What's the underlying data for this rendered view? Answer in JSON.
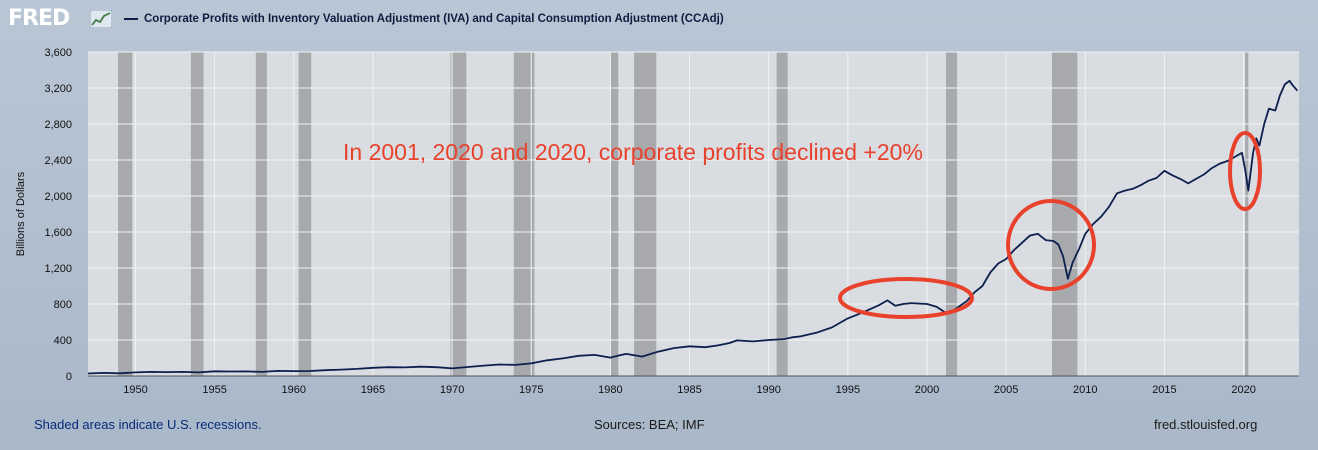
{
  "header": {
    "logo_text": "FRED",
    "logo_icon": "chart-line-icon",
    "series_title": "Corporate Profits with Inventory Valuation Adjustment (IVA) and Capital Consumption Adjustment (CCAdj)"
  },
  "footer": {
    "recession_note": "Shaded areas indicate U.S. recessions.",
    "sources": "Sources: BEA; IMF",
    "site": "fred.stlouisfed.org"
  },
  "annotation": {
    "text": "In 2001, 2020 and 2020, corporate profits declined +20%",
    "color": "#e8412c"
  },
  "chart_data": {
    "type": "line",
    "title": "",
    "xlabel": "",
    "ylabel": "Billions of Dollars",
    "xlim": [
      1947.0,
      2023.5
    ],
    "ylim": [
      0,
      3600
    ],
    "x_ticks": [
      1950,
      1955,
      1960,
      1965,
      1970,
      1975,
      1980,
      1985,
      1990,
      1995,
      2000,
      2005,
      2010,
      2015,
      2020
    ],
    "y_ticks": [
      0,
      400,
      800,
      1200,
      1600,
      2000,
      2400,
      2800,
      3200,
      3600
    ],
    "y_tick_labels": [
      "0",
      "400",
      "800",
      "1,200",
      "1,600",
      "2,000",
      "2,400",
      "2,800",
      "3,200",
      "3,600"
    ],
    "grid": true,
    "legend": "top-left",
    "colors": {
      "line": "#0c1f4d",
      "plot_bg": "#d9dde2",
      "recession": "#a7a9ad",
      "grid": "#f2f2f2"
    },
    "recessions": [
      [
        1948.9,
        1949.8
      ],
      [
        1953.5,
        1954.3
      ],
      [
        1957.6,
        1958.3
      ],
      [
        1960.3,
        1961.1
      ],
      [
        1969.9,
        1970.9
      ],
      [
        1973.9,
        1975.2
      ],
      [
        1980.0,
        1980.5
      ],
      [
        1981.5,
        1982.9
      ],
      [
        1990.5,
        1991.2
      ],
      [
        2001.2,
        2001.9
      ],
      [
        2007.9,
        2009.5
      ],
      [
        2020.1,
        2020.3
      ]
    ],
    "series": [
      {
        "values": [
          [
            1947.0,
            28
          ],
          [
            1948.0,
            35
          ],
          [
            1949.0,
            30
          ],
          [
            1950.0,
            40
          ],
          [
            1951.0,
            45
          ],
          [
            1952.0,
            43
          ],
          [
            1953.0,
            45
          ],
          [
            1954.0,
            40
          ],
          [
            1955.0,
            52
          ],
          [
            1956.0,
            50
          ],
          [
            1957.0,
            51
          ],
          [
            1958.0,
            46
          ],
          [
            1959.0,
            57
          ],
          [
            1960.0,
            55
          ],
          [
            1961.0,
            56
          ],
          [
            1962.0,
            64
          ],
          [
            1963.0,
            71
          ],
          [
            1964.0,
            79
          ],
          [
            1965.0,
            91
          ],
          [
            1966.0,
            98
          ],
          [
            1967.0,
            95
          ],
          [
            1968.0,
            103
          ],
          [
            1969.0,
            98
          ],
          [
            1970.0,
            85
          ],
          [
            1971.0,
            100
          ],
          [
            1972.0,
            115
          ],
          [
            1973.0,
            128
          ],
          [
            1974.0,
            123
          ],
          [
            1975.0,
            140
          ],
          [
            1976.0,
            175
          ],
          [
            1977.0,
            195
          ],
          [
            1978.0,
            225
          ],
          [
            1979.0,
            235
          ],
          [
            1980.0,
            205
          ],
          [
            1980.6,
            230
          ],
          [
            1981.0,
            245
          ],
          [
            1982.0,
            215
          ],
          [
            1983.0,
            270
          ],
          [
            1984.0,
            310
          ],
          [
            1985.0,
            330
          ],
          [
            1986.0,
            320
          ],
          [
            1986.8,
            340
          ],
          [
            1987.5,
            365
          ],
          [
            1988.0,
            395
          ],
          [
            1989.0,
            385
          ],
          [
            1990.0,
            400
          ],
          [
            1991.0,
            410
          ],
          [
            1991.5,
            430
          ],
          [
            1992.0,
            440
          ],
          [
            1993.0,
            480
          ],
          [
            1994.0,
            540
          ],
          [
            1995.0,
            640
          ],
          [
            1996.0,
            710
          ],
          [
            1997.0,
            790
          ],
          [
            1997.5,
            840
          ],
          [
            1998.0,
            780
          ],
          [
            1998.5,
            800
          ],
          [
            1999.0,
            810
          ],
          [
            2000.0,
            800
          ],
          [
            2000.6,
            770
          ],
          [
            2001.2,
            700
          ],
          [
            2001.6,
            720
          ],
          [
            2002.0,
            770
          ],
          [
            2002.5,
            830
          ],
          [
            2003.0,
            930
          ],
          [
            2003.5,
            1000
          ],
          [
            2004.0,
            1150
          ],
          [
            2004.5,
            1250
          ],
          [
            2005.0,
            1300
          ],
          [
            2005.5,
            1400
          ],
          [
            2006.0,
            1480
          ],
          [
            2006.5,
            1560
          ],
          [
            2007.0,
            1580
          ],
          [
            2007.5,
            1510
          ],
          [
            2008.0,
            1500
          ],
          [
            2008.3,
            1460
          ],
          [
            2008.6,
            1330
          ],
          [
            2008.9,
            1080
          ],
          [
            2009.2,
            1260
          ],
          [
            2009.6,
            1410
          ],
          [
            2010.0,
            1580
          ],
          [
            2010.5,
            1690
          ],
          [
            2011.0,
            1770
          ],
          [
            2011.5,
            1880
          ],
          [
            2012.0,
            2030
          ],
          [
            2012.5,
            2060
          ],
          [
            2013.0,
            2080
          ],
          [
            2013.5,
            2120
          ],
          [
            2014.0,
            2170
          ],
          [
            2014.5,
            2200
          ],
          [
            2015.0,
            2280
          ],
          [
            2015.5,
            2230
          ],
          [
            2016.0,
            2190
          ],
          [
            2016.5,
            2140
          ],
          [
            2017.0,
            2190
          ],
          [
            2017.5,
            2240
          ],
          [
            2018.0,
            2310
          ],
          [
            2018.5,
            2360
          ],
          [
            2019.0,
            2390
          ],
          [
            2019.5,
            2440
          ],
          [
            2019.9,
            2480
          ],
          [
            2020.1,
            2290
          ],
          [
            2020.3,
            2060
          ],
          [
            2020.6,
            2480
          ],
          [
            2020.8,
            2640
          ],
          [
            2021.0,
            2560
          ],
          [
            2021.3,
            2800
          ],
          [
            2021.6,
            2970
          ],
          [
            2022.0,
            2950
          ],
          [
            2022.3,
            3120
          ],
          [
            2022.6,
            3240
          ],
          [
            2022.9,
            3280
          ],
          [
            2023.1,
            3230
          ],
          [
            2023.4,
            3170
          ]
        ]
      }
    ]
  }
}
